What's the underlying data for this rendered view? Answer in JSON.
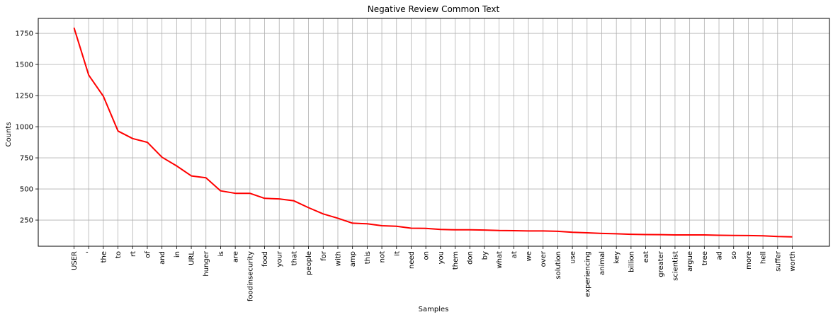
{
  "chart_data": {
    "type": "line",
    "title": "Negative Review Common Text",
    "xlabel": "Samples",
    "ylabel": "Counts",
    "grid": true,
    "line_color": "#ff0000",
    "ylim": [
      40,
      1870
    ],
    "yticks": [
      250,
      500,
      750,
      1000,
      1250,
      1500,
      1750
    ],
    "categories": [
      "USER",
      "'",
      "the",
      "to",
      "rt",
      "of",
      "and",
      "in",
      "URL",
      "hunger",
      "is",
      "are",
      "foodinsecurity",
      "food",
      "your",
      "that",
      "people",
      "for",
      "with",
      "amp",
      "this",
      "not",
      "it",
      "need",
      "on",
      "you",
      "them",
      "don",
      "by",
      "what",
      "at",
      "we",
      "over",
      "solution",
      "use",
      "experiencing",
      "animal",
      "key",
      "billion",
      "eat",
      "greater",
      "scientist",
      "argue",
      "tree",
      "ad",
      "so",
      "more",
      "hell",
      "suffer",
      "worth"
    ],
    "values": [
      1795,
      1415,
      1245,
      965,
      905,
      875,
      755,
      685,
      605,
      590,
      485,
      465,
      465,
      425,
      420,
      405,
      350,
      300,
      265,
      225,
      220,
      205,
      200,
      185,
      183,
      175,
      172,
      172,
      170,
      166,
      165,
      163,
      163,
      160,
      152,
      148,
      143,
      140,
      136,
      134,
      133,
      131,
      131,
      131,
      128,
      127,
      126,
      124,
      118,
      115
    ]
  }
}
